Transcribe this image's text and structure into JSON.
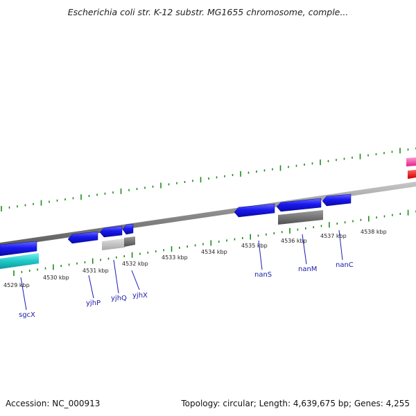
{
  "title": "Escherichia coli str. K-12 substr. MG1655 chromosome, comple...",
  "footer": {
    "accession": "Accession: NC_000913",
    "summary": "Topology: circular; Length: 4,639,675 bp; Genes: 4,255"
  },
  "scale": {
    "kbp_labels": [
      "4529 kbp",
      "4530 kbp",
      "4531 kbp",
      "4532 kbp",
      "4533 kbp",
      "4534 kbp",
      "4535 kbp",
      "4536 kbp",
      "4537 kbp",
      "4538 kbp"
    ]
  },
  "genes": [
    {
      "name": "sgcX",
      "color": "#1010dd"
    },
    {
      "name": "yjhP",
      "color": "#1010dd"
    },
    {
      "name": "yjhQ",
      "color": "#1010dd"
    },
    {
      "name": "yjhX",
      "color": "#1010dd"
    },
    {
      "name": "nanS",
      "color": "#1010dd"
    },
    {
      "name": "nanM",
      "color": "#1010dd"
    },
    {
      "name": "nanC",
      "color": "#1010dd"
    }
  ],
  "colors": {
    "cds": "#1010dd",
    "cds_secondary": "#1ec8c8",
    "rna_gray_light": "#bdbdbd",
    "rna_gray_dark": "#6e6e6e",
    "feature_pink": "#ff3fa6",
    "feature_red": "#ee0000",
    "tick": "#1b8a1b",
    "backbone": "#8a8a8a"
  }
}
